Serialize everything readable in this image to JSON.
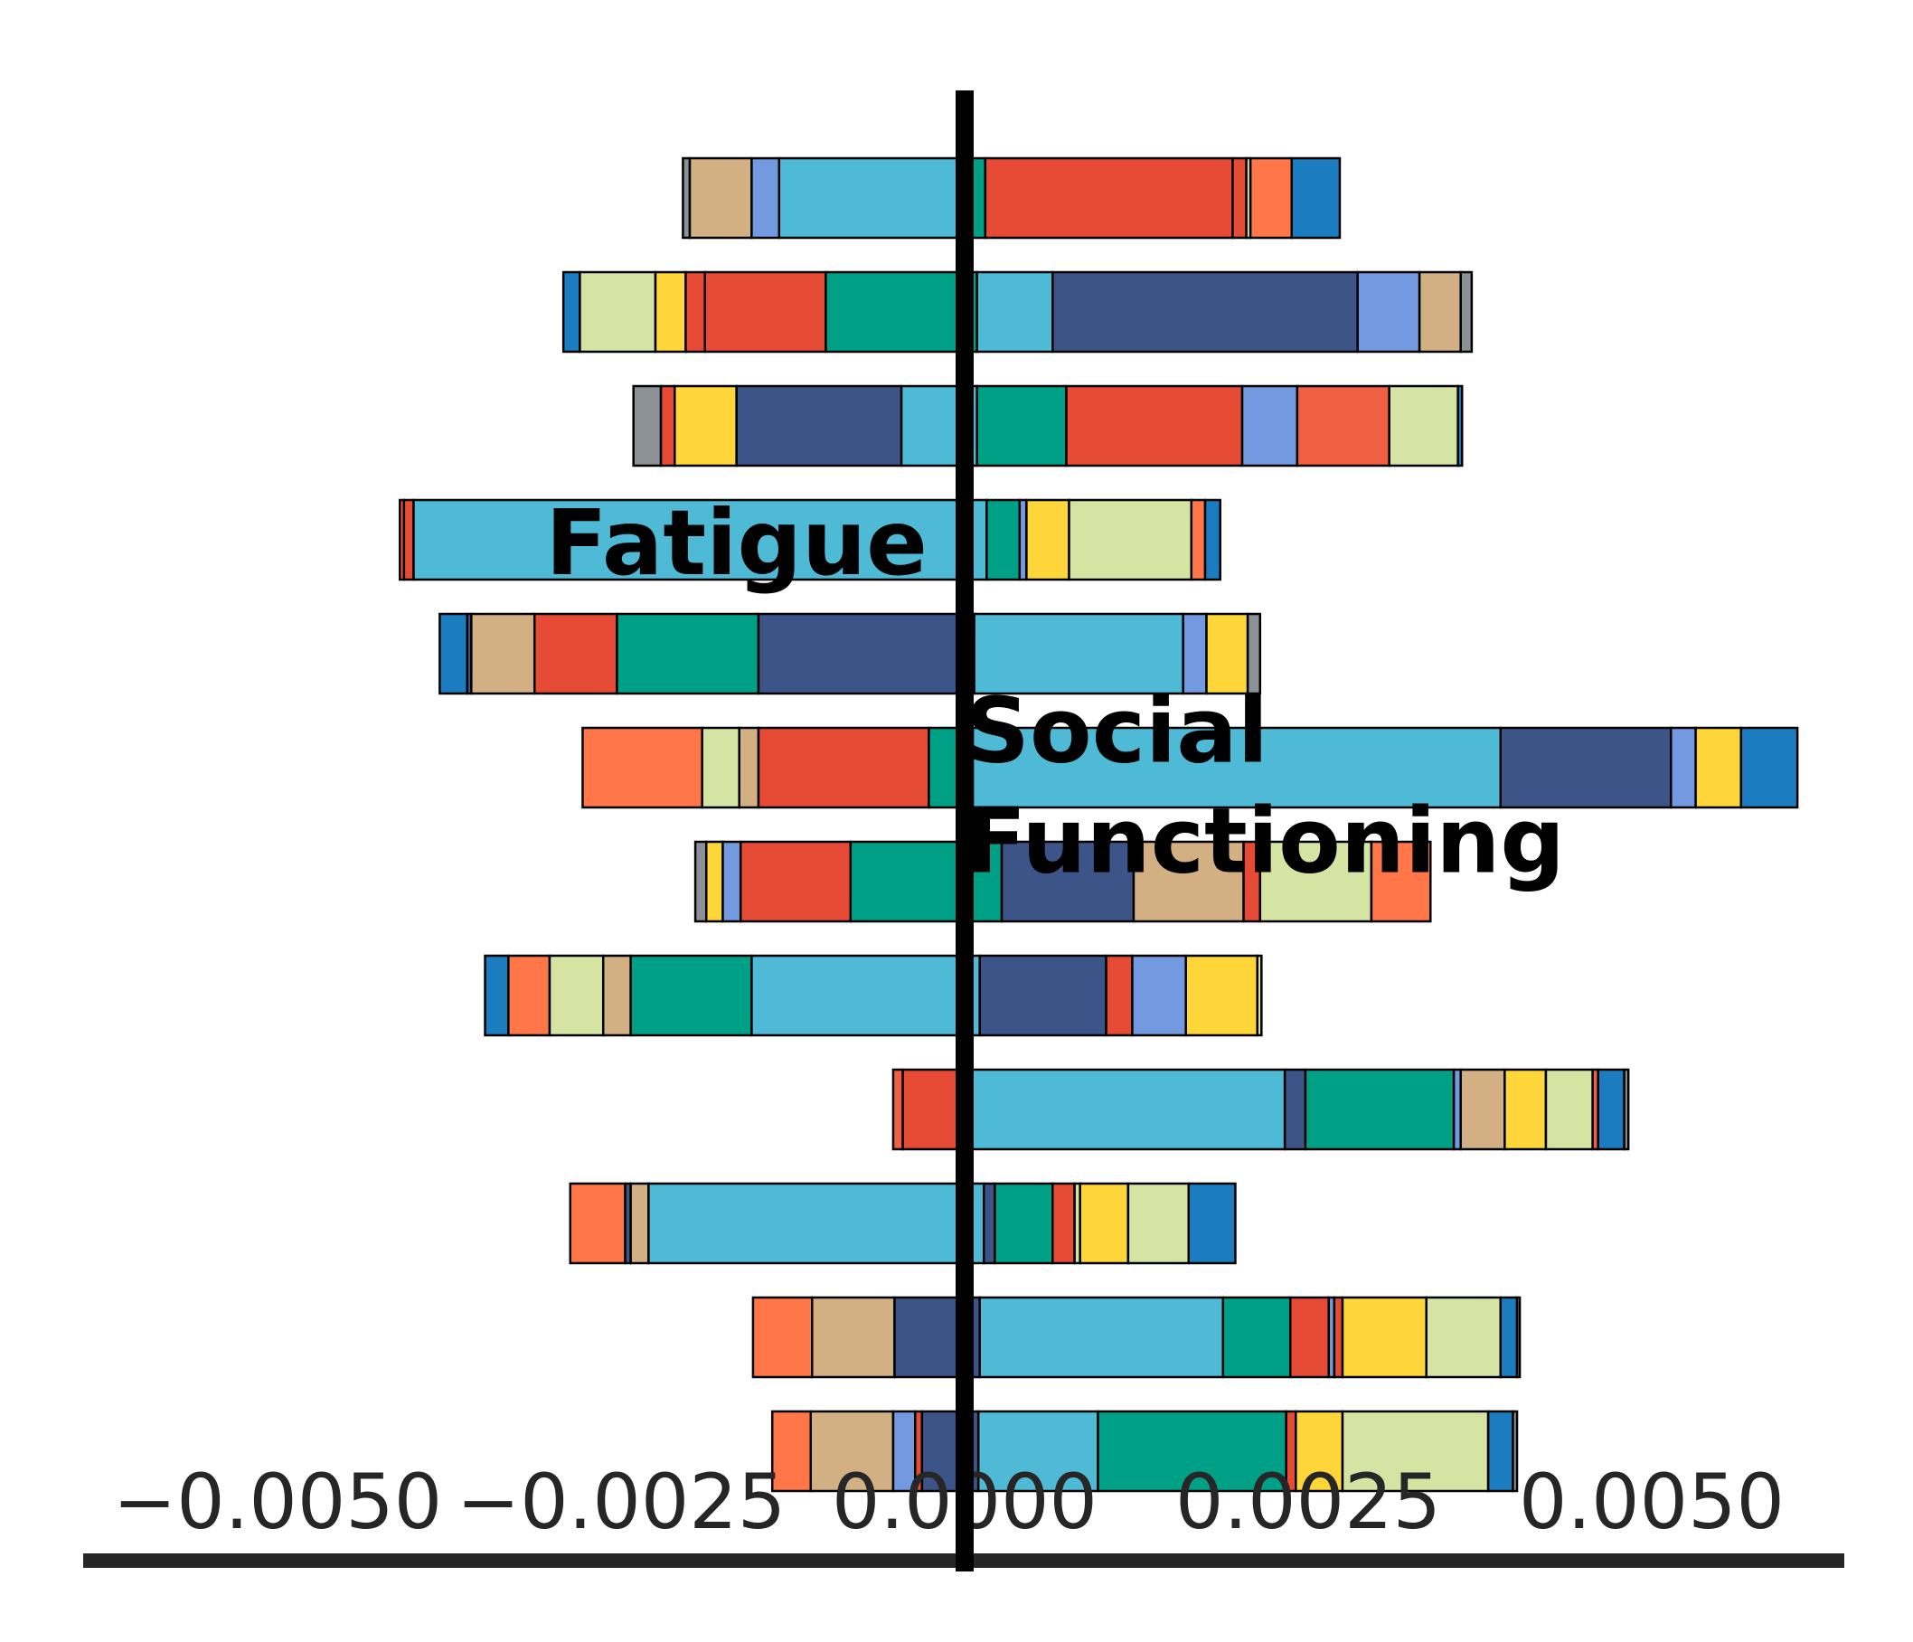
{
  "chart_data": {
    "type": "bar",
    "orientation": "horizontal-stacked-diverging",
    "title": "",
    "xlabel": "",
    "ylabel": "",
    "xlim": [
      -0.0058,
      0.0058
    ],
    "xticks": [
      -0.005,
      -0.0025,
      0.0,
      0.0025,
      0.005
    ],
    "xtick_labels": [
      "−0.0050",
      "−0.0025",
      "0.0000",
      "0.0025",
      "0.0050"
    ],
    "grid": false,
    "legend": "none",
    "annotations": [
      {
        "text": "Fatigue",
        "x": -0.00305,
        "y_row": 3.3
      },
      {
        "text": "Social\nFunctioning",
        "x": 0.0,
        "y_row": 4.95
      }
    ],
    "colors": {
      "gray": "#8c9196",
      "tan": "#d2b084",
      "lavender": "#739ae0",
      "sky": "#4fbad6",
      "teal": "#00a087",
      "red": "#e64b35",
      "orange": "#ff7648",
      "blue": "#1b7dc0",
      "khaki": "#d5e4a2",
      "yellow": "#ffd63a",
      "navy": "#3c5488",
      "coral": "#f05f42"
    },
    "rows": [
      {
        "start": -0.00205,
        "segments": [
          [
            "gray",
            5e-05
          ],
          [
            "tan",
            0.00045
          ],
          [
            "lavender",
            0.0002
          ],
          [
            "sky",
            0.00135
          ],
          [
            "teal",
            0.00015
          ],
          [
            "red",
            0.0018
          ],
          [
            "red",
            0.0001
          ],
          [
            "khaki",
            3e-05
          ],
          [
            "orange",
            0.0003
          ],
          [
            "blue",
            0.00035
          ]
        ]
      },
      {
        "start": -0.00292,
        "segments": [
          [
            "blue",
            0.00012
          ],
          [
            "khaki",
            0.00055
          ],
          [
            "yellow",
            0.00022
          ],
          [
            "red",
            0.00014
          ],
          [
            "red",
            0.00088
          ],
          [
            "teal",
            0.0011
          ],
          [
            "sky",
            0.00055
          ],
          [
            "navy",
            0.00222
          ],
          [
            "lavender",
            0.00045
          ],
          [
            "tan",
            0.0003
          ],
          [
            "gray",
            8e-05
          ]
        ]
      },
      {
        "start": -0.00241,
        "segments": [
          [
            "gray",
            0.0002
          ],
          [
            "red",
            0.0001
          ],
          [
            "yellow",
            0.00045
          ],
          [
            "navy",
            0.0012
          ],
          [
            "sky",
            0.00055
          ],
          [
            "teal",
            0.00065
          ],
          [
            "red",
            0.00128
          ],
          [
            "lavender",
            0.0004
          ],
          [
            "coral",
            0.00067
          ],
          [
            "khaki",
            0.0005
          ],
          [
            "blue",
            3e-05
          ]
        ]
      },
      {
        "start": -0.00411,
        "segments": [
          [
            "coral",
            3e-05
          ],
          [
            "red",
            7e-05
          ],
          [
            "sky",
            0.00417
          ],
          [
            "teal",
            0.00024
          ],
          [
            "lavender",
            5e-05
          ],
          [
            "yellow",
            0.00031
          ],
          [
            "khaki",
            0.00089
          ],
          [
            "orange",
            0.0001
          ],
          [
            "blue",
            0.00011
          ]
        ]
      },
      {
        "start": -0.00382,
        "segments": [
          [
            "blue",
            0.0002
          ],
          [
            "navy",
            3e-05
          ],
          [
            "tan",
            0.00046
          ],
          [
            "red",
            0.0006
          ],
          [
            "teal",
            0.00103
          ],
          [
            "navy",
            0.00157
          ],
          [
            "sky",
            0.00152
          ],
          [
            "lavender",
            0.00017
          ],
          [
            "yellow",
            0.0003
          ],
          [
            "gray",
            9e-05
          ]
        ]
      },
      {
        "start": -0.00278,
        "segments": [
          [
            "orange",
            0.00087
          ],
          [
            "khaki",
            0.00027
          ],
          [
            "tan",
            0.00014
          ],
          [
            "red",
            0.00124
          ],
          [
            "teal",
            0.00032
          ],
          [
            "sky",
            0.00384
          ],
          [
            "navy",
            0.00124
          ],
          [
            "lavender",
            0.00018
          ],
          [
            "yellow",
            0.00033
          ],
          [
            "blue",
            0.00041
          ]
        ]
      },
      {
        "start": -0.00196,
        "segments": [
          [
            "gray",
            8e-05
          ],
          [
            "yellow",
            0.00012
          ],
          [
            "lavender",
            0.00013
          ],
          [
            "red",
            0.0008
          ],
          [
            "teal",
            0.0011
          ],
          [
            "navy",
            0.00096
          ],
          [
            "tan",
            0.0008
          ],
          [
            "red",
            0.00012
          ],
          [
            "khaki",
            0.00081
          ],
          [
            "orange",
            0.00043
          ]
        ]
      },
      {
        "start": -0.00349,
        "segments": [
          [
            "blue",
            0.00017
          ],
          [
            "orange",
            0.0003
          ],
          [
            "khaki",
            0.00039
          ],
          [
            "tan",
            0.0002
          ],
          [
            "teal",
            0.00088
          ],
          [
            "sky",
            0.00166
          ],
          [
            "navy",
            0.00092
          ],
          [
            "red",
            0.00019
          ],
          [
            "lavender",
            0.00039
          ],
          [
            "yellow",
            0.00052
          ],
          [
            "khaki",
            3e-05
          ]
        ]
      },
      {
        "start": -0.00052,
        "segments": [
          [
            "coral",
            7e-05
          ],
          [
            "red",
            0.00045
          ],
          [
            "sky",
            0.00233
          ],
          [
            "navy",
            0.00015
          ],
          [
            "teal",
            0.00108
          ],
          [
            "lavender",
            5e-05
          ],
          [
            "tan",
            0.00032
          ],
          [
            "yellow",
            0.0003
          ],
          [
            "khaki",
            0.00034
          ],
          [
            "coral",
            4e-05
          ],
          [
            "blue",
            0.00019
          ],
          [
            "gray",
            3e-05
          ]
        ]
      },
      {
        "start": -0.00287,
        "segments": [
          [
            "orange",
            0.0004
          ],
          [
            "navy",
            4e-05
          ],
          [
            "tan",
            0.00013
          ],
          [
            "sky",
            0.00244
          ],
          [
            "navy",
            8e-05
          ],
          [
            "teal",
            0.00042
          ],
          [
            "red",
            0.00016
          ],
          [
            "khaki",
            4e-05
          ],
          [
            "yellow",
            0.00035
          ],
          [
            "khaki",
            0.00044
          ],
          [
            "blue",
            0.00034
          ]
        ]
      },
      {
        "start": -0.00154,
        "segments": [
          [
            "orange",
            0.00043
          ],
          [
            "tan",
            0.0006
          ],
          [
            "navy",
            0.00062
          ],
          [
            "sky",
            0.00177
          ],
          [
            "teal",
            0.00049
          ],
          [
            "red",
            0.00028
          ],
          [
            "lavender",
            4e-05
          ],
          [
            "red",
            6e-05
          ],
          [
            "yellow",
            0.00061
          ],
          [
            "khaki",
            0.00054
          ],
          [
            "blue",
            0.00012
          ],
          [
            "gray",
            2e-05
          ]
        ]
      },
      {
        "start": -0.0014,
        "segments": [
          [
            "orange",
            0.00028
          ],
          [
            "tan",
            0.0006
          ],
          [
            "lavender",
            0.00016
          ],
          [
            "red",
            5e-05
          ],
          [
            "navy",
            0.00041
          ],
          [
            "sky",
            0.00087
          ],
          [
            "teal",
            0.00137
          ],
          [
            "red",
            7e-05
          ],
          [
            "yellow",
            0.00034
          ],
          [
            "khaki",
            0.00106
          ],
          [
            "blue",
            0.00018
          ],
          [
            "gray",
            3e-05
          ]
        ]
      }
    ]
  }
}
